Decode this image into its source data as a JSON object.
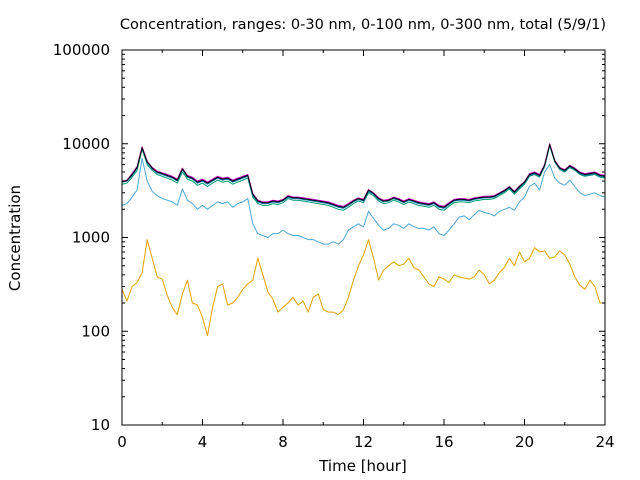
{
  "chart_data": {
    "type": "line",
    "title": "Concentration, ranges: 0-30 nm, 0-100 nm, 0-300 nm, total (5/9/1)",
    "xlabel": "Time [hour]",
    "ylabel": "Concentration",
    "xlim": [
      0,
      24
    ],
    "ylim": [
      10,
      100000
    ],
    "yscale": "log",
    "x_ticks": [
      0,
      4,
      8,
      12,
      16,
      20,
      24
    ],
    "x_tick_labels": [
      "0",
      "4",
      "8",
      "12",
      "16",
      "20",
      "24"
    ],
    "y_ticks": [
      10,
      100,
      1000,
      10000,
      100000
    ],
    "y_tick_labels": [
      "10",
      "100",
      "1000",
      "10000",
      "100000"
    ],
    "grid": false,
    "legend": "none",
    "x": [
      0,
      0.25,
      0.5,
      0.75,
      1,
      1.25,
      1.5,
      1.75,
      2,
      2.25,
      2.5,
      2.75,
      3,
      3.25,
      3.5,
      3.75,
      4,
      4.25,
      4.5,
      4.75,
      5,
      5.25,
      5.5,
      5.75,
      6,
      6.25,
      6.5,
      6.75,
      7,
      7.25,
      7.5,
      7.75,
      8,
      8.25,
      8.5,
      8.75,
      9,
      9.25,
      9.5,
      9.75,
      10,
      10.25,
      10.5,
      10.75,
      11,
      11.25,
      11.5,
      11.75,
      12,
      12.25,
      12.5,
      12.75,
      13,
      13.25,
      13.5,
      13.75,
      14,
      14.25,
      14.5,
      14.75,
      15,
      15.25,
      15.5,
      15.75,
      16,
      16.25,
      16.5,
      16.75,
      17,
      17.25,
      17.5,
      17.75,
      18,
      18.25,
      18.5,
      18.75,
      19,
      19.25,
      19.5,
      19.75,
      20,
      20.25,
      20.5,
      20.75,
      21,
      21.25,
      21.5,
      21.75,
      22,
      22.25,
      22.5,
      22.75,
      23,
      23.25,
      23.5,
      23.75,
      24
    ],
    "series": [
      {
        "color": "#e6a000",
        "values": [
          280,
          210,
          300,
          330,
          420,
          950,
          600,
          380,
          360,
          240,
          180,
          150,
          250,
          350,
          200,
          190,
          140,
          90,
          180,
          300,
          320,
          190,
          200,
          230,
          280,
          320,
          350,
          600,
          400,
          260,
          220,
          160,
          180,
          200,
          230,
          190,
          210,
          160,
          230,
          250,
          170,
          160,
          160,
          150,
          170,
          230,
          350,
          500,
          650,
          950,
          600,
          350,
          450,
          500,
          550,
          500,
          520,
          600,
          480,
          450,
          380,
          320,
          300,
          380,
          360,
          330,
          400,
          380,
          370,
          360,
          380,
          450,
          400,
          320,
          350,
          420,
          480,
          600,
          500,
          700,
          550,
          600,
          780,
          700,
          720,
          600,
          620,
          720,
          650,
          520,
          380,
          310,
          280,
          350,
          300,
          200,
          200
        ]
      },
      {
        "color": "#4aa8d8",
        "values": [
          2200,
          2300,
          2700,
          3200,
          7000,
          4000,
          3100,
          2800,
          2600,
          2500,
          2400,
          2200,
          3300,
          2500,
          2300,
          2000,
          2200,
          2000,
          2200,
          2400,
          2300,
          2400,
          2100,
          2300,
          2400,
          2600,
          1400,
          1100,
          1050,
          1000,
          1100,
          1100,
          1200,
          1100,
          1050,
          1050,
          1000,
          950,
          950,
          900,
          850,
          850,
          900,
          850,
          950,
          1200,
          1300,
          1400,
          1300,
          1900,
          1600,
          1350,
          1200,
          1250,
          1400,
          1350,
          1250,
          1400,
          1300,
          1250,
          1250,
          1200,
          1300,
          1100,
          1050,
          1200,
          1400,
          1650,
          1700,
          1550,
          1750,
          1950,
          1850,
          1800,
          1700,
          1900,
          2000,
          2100,
          1950,
          2400,
          2700,
          3500,
          3800,
          3200,
          5000,
          6000,
          4300,
          3800,
          3600,
          4100,
          3500,
          3000,
          2800,
          2900,
          3000,
          2800,
          2700
        ]
      },
      {
        "color": "#009e73",
        "values": [
          3700,
          3800,
          4400,
          5200,
          8700,
          6000,
          5200,
          4700,
          4500,
          4300,
          4100,
          3800,
          5000,
          4200,
          4000,
          3600,
          3800,
          3500,
          3800,
          4100,
          3900,
          4000,
          3700,
          3900,
          4100,
          4300,
          2700,
          2300,
          2200,
          2200,
          2300,
          2250,
          2350,
          2600,
          2500,
          2500,
          2450,
          2400,
          2350,
          2300,
          2250,
          2200,
          2100,
          2000,
          1950,
          2100,
          2300,
          2450,
          2350,
          3000,
          2800,
          2450,
          2300,
          2350,
          2500,
          2400,
          2250,
          2400,
          2300,
          2200,
          2150,
          2100,
          2200,
          2000,
          1950,
          2150,
          2350,
          2400,
          2400,
          2350,
          2450,
          2500,
          2550,
          2550,
          2600,
          2800,
          3000,
          3300,
          2900,
          3300,
          3700,
          4500,
          4700,
          4400,
          5700,
          9500,
          6400,
          5300,
          5000,
          5600,
          5200,
          4700,
          4500,
          4600,
          4700,
          4400,
          4300
        ]
      },
      {
        "color": "#0072b2",
        "values": [
          3900,
          4000,
          4600,
          5500,
          9000,
          6300,
          5400,
          4900,
          4700,
          4500,
          4300,
          4000,
          5300,
          4400,
          4200,
          3800,
          4000,
          3700,
          4000,
          4300,
          4100,
          4200,
          3900,
          4100,
          4300,
          4500,
          2800,
          2400,
          2300,
          2300,
          2400,
          2350,
          2450,
          2700,
          2600,
          2600,
          2550,
          2500,
          2450,
          2400,
          2350,
          2300,
          2200,
          2100,
          2050,
          2200,
          2400,
          2550,
          2450,
          3100,
          2900,
          2550,
          2400,
          2450,
          2600,
          2500,
          2350,
          2500,
          2400,
          2300,
          2250,
          2200,
          2300,
          2100,
          2050,
          2250,
          2450,
          2500,
          2500,
          2450,
          2550,
          2600,
          2650,
          2650,
          2700,
          2900,
          3100,
          3400,
          3000,
          3400,
          3800,
          4600,
          4800,
          4500,
          5800,
          9700,
          6500,
          5400,
          5100,
          5700,
          5300,
          4800,
          4600,
          4700,
          4800,
          4500,
          4400
        ]
      },
      {
        "color": "#cc00cc",
        "values": [
          4000,
          4100,
          4800,
          5700,
          9300,
          6500,
          5600,
          5100,
          4900,
          4700,
          4500,
          4200,
          5500,
          4600,
          4400,
          4000,
          4200,
          3900,
          4200,
          4500,
          4300,
          4400,
          4100,
          4300,
          4500,
          4700,
          2950,
          2500,
          2400,
          2400,
          2500,
          2450,
          2550,
          2800,
          2700,
          2700,
          2650,
          2600,
          2550,
          2500,
          2450,
          2400,
          2300,
          2200,
          2150,
          2300,
          2500,
          2650,
          2550,
          3250,
          3000,
          2650,
          2500,
          2550,
          2700,
          2600,
          2450,
          2600,
          2500,
          2400,
          2350,
          2300,
          2400,
          2200,
          2150,
          2350,
          2550,
          2600,
          2600,
          2550,
          2650,
          2700,
          2750,
          2750,
          2800,
          3000,
          3200,
          3500,
          3100,
          3550,
          3950,
          4800,
          5000,
          4700,
          6000,
          10000,
          6700,
          5600,
          5300,
          5900,
          5500,
          5000,
          4800,
          4900,
          5000,
          4700,
          4600
        ]
      },
      {
        "color": "#000000",
        "values": [
          3950,
          4050,
          4700,
          5600,
          9100,
          6400,
          5500,
          5000,
          4800,
          4600,
          4400,
          4100,
          5400,
          4500,
          4300,
          3900,
          4100,
          3800,
          4100,
          4400,
          4200,
          4300,
          4000,
          4200,
          4400,
          4600,
          2900,
          2450,
          2350,
          2350,
          2450,
          2400,
          2500,
          2750,
          2650,
          2650,
          2600,
          2550,
          2500,
          2450,
          2400,
          2350,
          2250,
          2150,
          2100,
          2250,
          2450,
          2600,
          2500,
          3200,
          2950,
          2600,
          2450,
          2500,
          2650,
          2550,
          2400,
          2550,
          2450,
          2350,
          2300,
          2250,
          2350,
          2150,
          2100,
          2300,
          2500,
          2550,
          2550,
          2500,
          2600,
          2650,
          2700,
          2700,
          2750,
          2950,
          3150,
          3450,
          3050,
          3500,
          3900,
          4700,
          4900,
          4600,
          5900,
          9850,
          6600,
          5500,
          5200,
          5800,
          5400,
          4900,
          4700,
          4800,
          4900,
          4600,
          4500
        ]
      }
    ]
  }
}
